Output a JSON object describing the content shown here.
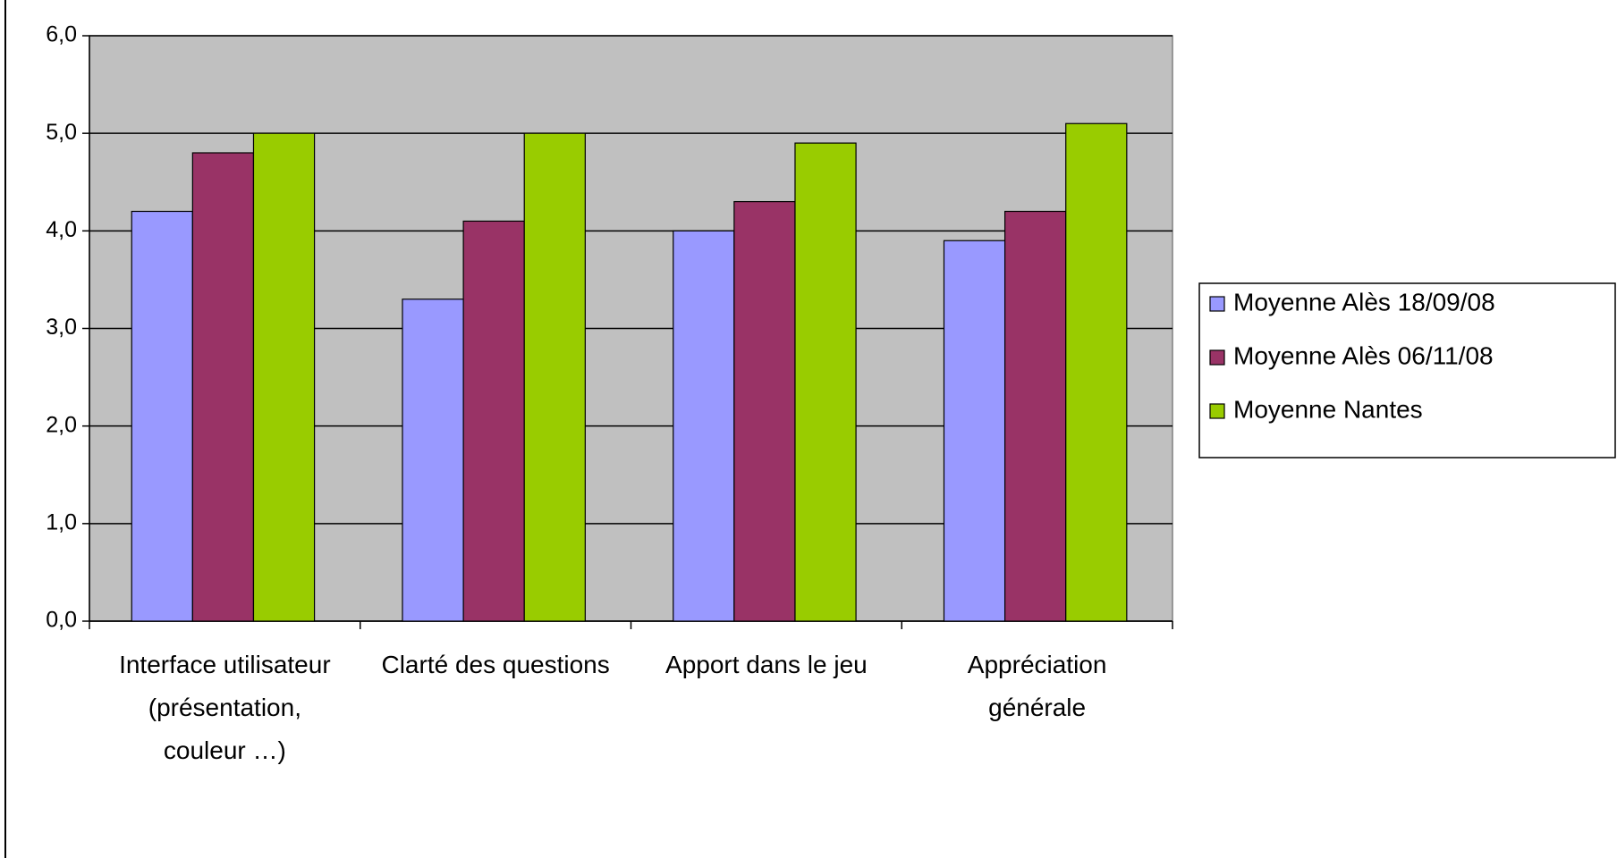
{
  "chart_data": {
    "type": "bar",
    "categories": [
      "Interface utilisateur (présentation, couleur …)",
      "Clarté des questions",
      "Apport dans le jeu",
      "Appréciation générale"
    ],
    "series": [
      {
        "name": "Moyenne Alès 18/09/08",
        "color": "#9999ff",
        "values": [
          4.2,
          3.3,
          4.0,
          3.9
        ]
      },
      {
        "name": "Moyenne Alès 06/11/08",
        "color": "#993366",
        "values": [
          4.8,
          4.1,
          4.3,
          4.2
        ]
      },
      {
        "name": "Moyenne Nantes",
        "color": "#99cc00",
        "values": [
          5.0,
          5.0,
          4.9,
          5.1
        ]
      }
    ],
    "ylim": [
      0,
      6
    ],
    "yticks": [
      {
        "value": 0,
        "label": "0,0"
      },
      {
        "value": 1,
        "label": "1,0"
      },
      {
        "value": 2,
        "label": "2,0"
      },
      {
        "value": 3,
        "label": "3,0"
      },
      {
        "value": 4,
        "label": "4,0"
      },
      {
        "value": 5,
        "label": "5,0"
      },
      {
        "value": 6,
        "label": "6,0"
      }
    ],
    "grid": true,
    "legend": "right"
  }
}
